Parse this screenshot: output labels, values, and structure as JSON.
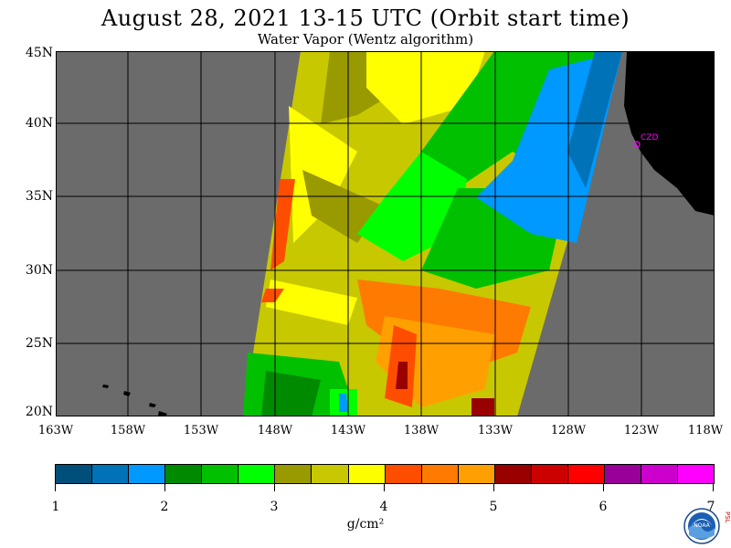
{
  "title": "August 28, 2021  13-15 UTC  (Orbit start time)",
  "subtitle": "Water Vapor (Wentz algorithm)",
  "map": {
    "latitudes": [
      "45N",
      "40N",
      "35N",
      "30N",
      "25N",
      "20N"
    ],
    "longitudes": [
      "163W",
      "158W",
      "153W",
      "148W",
      "143W",
      "138W",
      "133W",
      "128W",
      "123W",
      "118W"
    ],
    "station_label": "CZD",
    "colors": {
      "no_data": "#6b6b6b",
      "land": "#000000",
      "grid": "#000000",
      "station": "#ff00ff"
    }
  },
  "colorbar": {
    "colors": [
      "#004f7a",
      "#0072b8",
      "#0099ff",
      "#008a00",
      "#00c000",
      "#00ff00",
      "#999900",
      "#c8c800",
      "#ffff00",
      "#ff4d00",
      "#ff7a00",
      "#ffa000",
      "#990000",
      "#cc0000",
      "#ff0000",
      "#990099",
      "#cc00cc",
      "#ff00ff"
    ],
    "ticks": [
      "1",
      "2",
      "3",
      "4",
      "5",
      "6",
      "7"
    ],
    "units": "g/cm²"
  },
  "logo": {
    "name": "NOAA",
    "side_text": "PSL"
  }
}
